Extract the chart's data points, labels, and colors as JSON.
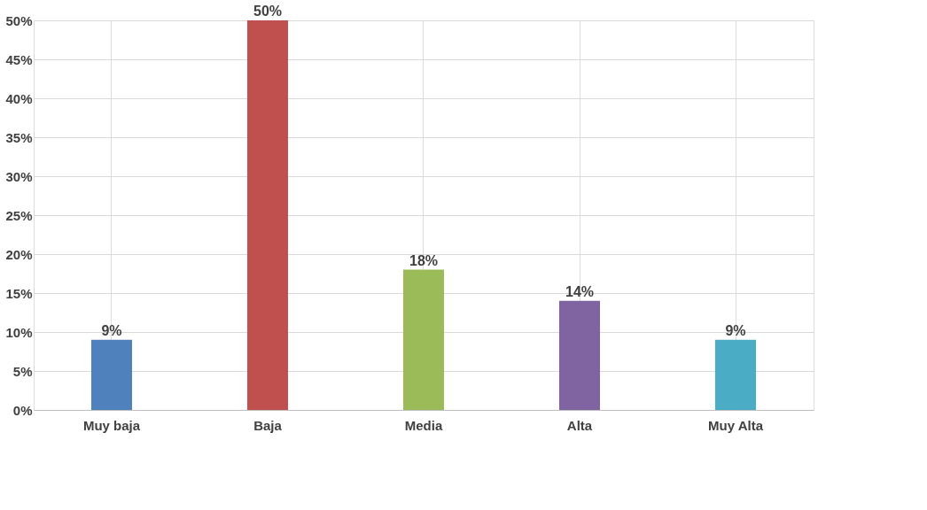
{
  "chart_data": {
    "type": "bar",
    "categories": [
      "Muy baja",
      "Baja",
      "Media",
      "Alta",
      "Muy Alta"
    ],
    "values": [
      9,
      50,
      18,
      14,
      9
    ],
    "colors": [
      "#4f81bd",
      "#c0504d",
      "#9bbb59",
      "#8064a2",
      "#4bacc6"
    ],
    "value_labels": [
      "9%",
      "50%",
      "18%",
      "14%",
      "9%"
    ],
    "ylim": [
      0,
      50
    ],
    "yticks": [
      {
        "value": 0,
        "label": "0%"
      },
      {
        "value": 5,
        "label": "5%"
      },
      {
        "value": 10,
        "label": "10%"
      },
      {
        "value": 15,
        "label": "15%"
      },
      {
        "value": 20,
        "label": "20%"
      },
      {
        "value": 25,
        "label": "25%"
      },
      {
        "value": 30,
        "label": "30%"
      },
      {
        "value": 35,
        "label": "35%"
      },
      {
        "value": 40,
        "label": "40%"
      },
      {
        "value": 45,
        "label": "45%"
      },
      {
        "value": 50,
        "label": "50%"
      }
    ],
    "grid": true
  }
}
